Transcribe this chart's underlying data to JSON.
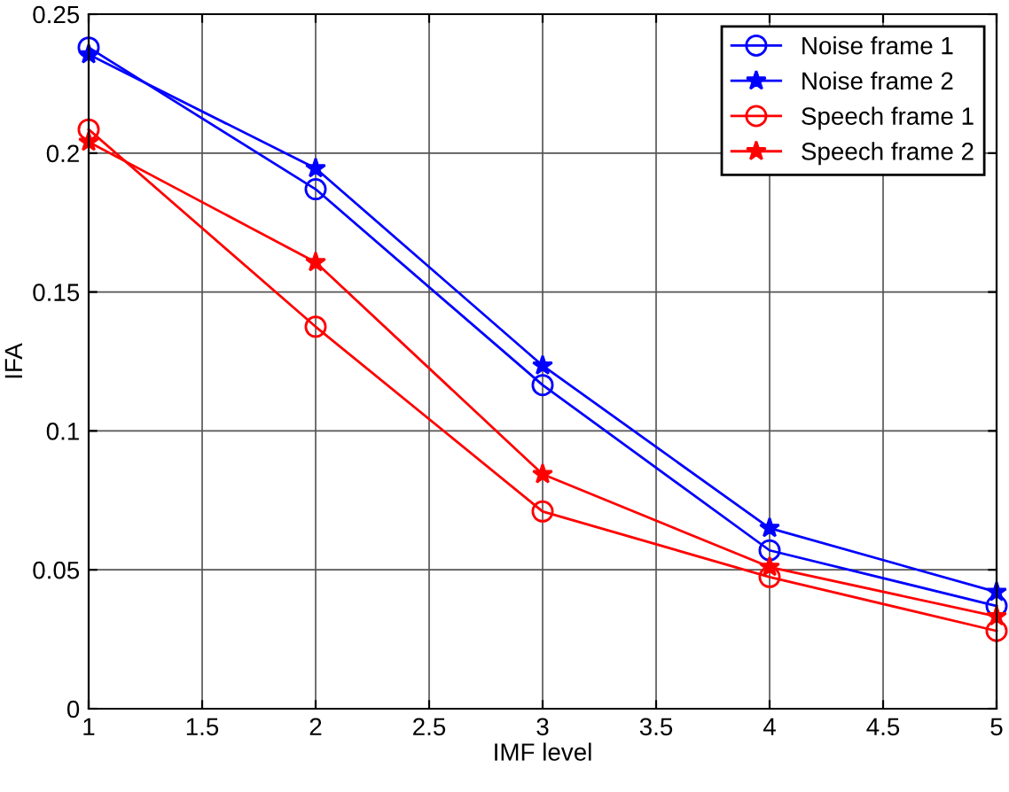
{
  "chart_data": {
    "type": "line",
    "xlabel": "IMF level",
    "ylabel": "IFA",
    "x": [
      1,
      2,
      3,
      4,
      5
    ],
    "series": [
      {
        "name": "Noise frame 1",
        "color": "#0000ff",
        "marker": "circle",
        "values": [
          0.238,
          0.187,
          0.1165,
          0.057,
          0.037
        ]
      },
      {
        "name": "Noise frame 2",
        "color": "#0000ff",
        "marker": "star",
        "values": [
          0.2355,
          0.1945,
          0.1235,
          0.065,
          0.042
        ]
      },
      {
        "name": "Speech frame 1",
        "color": "#ff0000",
        "marker": "circle",
        "values": [
          0.2085,
          0.1375,
          0.071,
          0.0474,
          0.028
        ]
      },
      {
        "name": "Speech frame 2",
        "color": "#ff0000",
        "marker": "star",
        "values": [
          0.204,
          0.1607,
          0.0844,
          0.051,
          0.0332
        ]
      }
    ],
    "xlim": [
      1,
      5
    ],
    "xticks": [
      1,
      1.5,
      2,
      2.5,
      3,
      3.5,
      4,
      4.5,
      5
    ],
    "ylim": [
      0,
      0.25
    ],
    "yticks": [
      0,
      0.05,
      0.1,
      0.15,
      0.2,
      0.25
    ],
    "grid": true,
    "legend": "top right",
    "line_style": "solid"
  }
}
